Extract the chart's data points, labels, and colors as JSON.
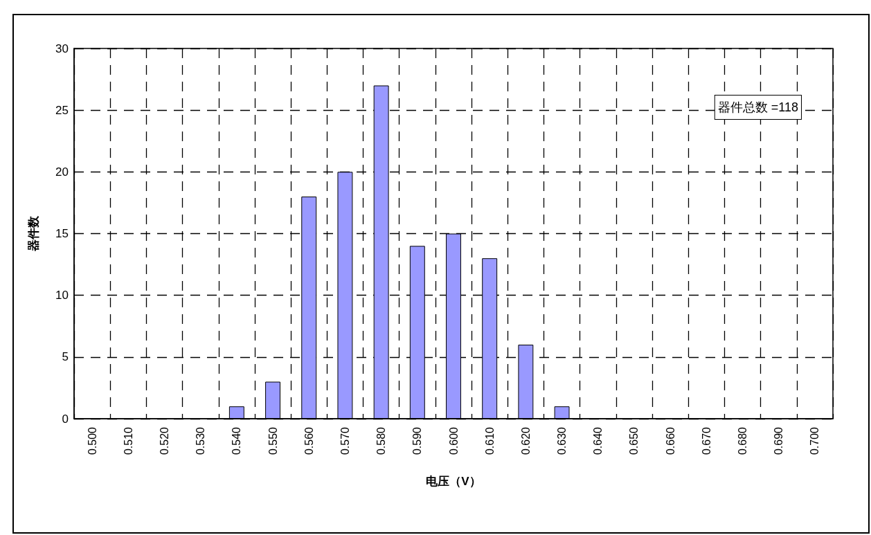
{
  "chart_data": {
    "type": "bar",
    "xlabel": "电压（V）",
    "ylabel": "器件数",
    "categories": [
      "0.500",
      "0.510",
      "0.520",
      "0.530",
      "0.540",
      "0.550",
      "0.560",
      "0.570",
      "0.580",
      "0.590",
      "0.600",
      "0.610",
      "0.620",
      "0.630",
      "0.640",
      "0.650",
      "0.660",
      "0.670",
      "0.680",
      "0.690",
      "0.700"
    ],
    "values": [
      0,
      0,
      0,
      0,
      1,
      3,
      18,
      20,
      27,
      14,
      15,
      13,
      6,
      1,
      0,
      0,
      0,
      0,
      0,
      0,
      0
    ],
    "color": "#9999ff",
    "ylim": [
      0,
      30
    ],
    "yticks": [
      0,
      5,
      10,
      15,
      20,
      25,
      30
    ],
    "grid": true,
    "annotations": [
      "器件总数 =118"
    ]
  }
}
